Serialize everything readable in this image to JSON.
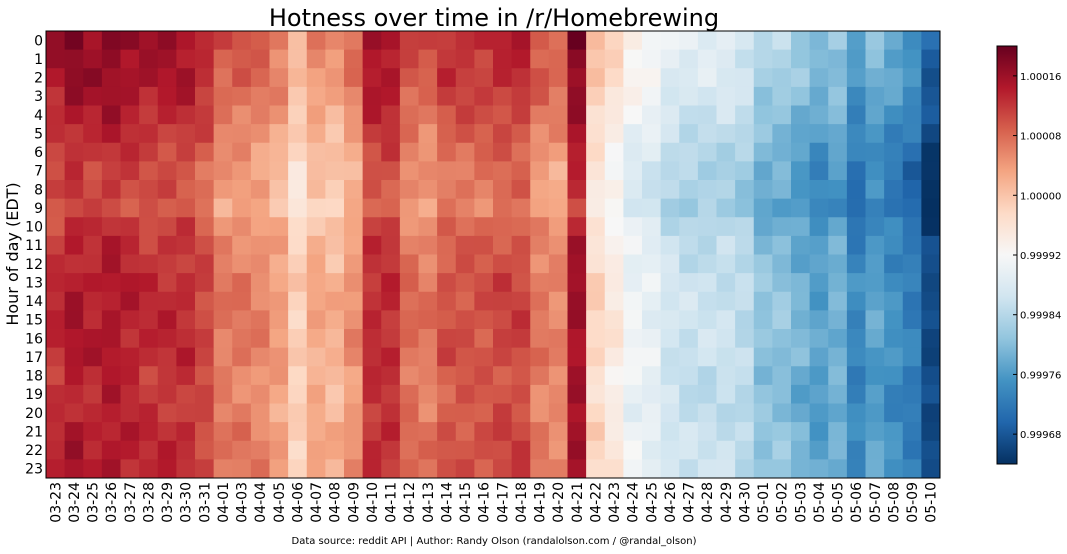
{
  "chart_data": {
    "type": "heatmap",
    "title": "Hotness over time in /r/Homebrewing",
    "ylabel": "Hour of day (EDT)",
    "xlabel": "",
    "footer": "Data source: reddit API | Author: Randy Olson (randalolson.com / @randal_olson)",
    "x": [
      "03-23",
      "03-24",
      "03-25",
      "03-26",
      "03-27",
      "03-28",
      "03-29",
      "03-30",
      "03-31",
      "04-01",
      "04-03",
      "04-04",
      "04-05",
      "04-06",
      "04-07",
      "04-08",
      "04-09",
      "04-10",
      "04-11",
      "04-12",
      "04-13",
      "04-14",
      "04-15",
      "04-16",
      "04-17",
      "04-18",
      "04-19",
      "04-20",
      "04-21",
      "04-22",
      "04-23",
      "04-24",
      "04-25",
      "04-26",
      "04-27",
      "04-28",
      "04-29",
      "04-30",
      "05-01",
      "05-02",
      "05-03",
      "05-04",
      "05-05",
      "05-06",
      "05-07",
      "05-08",
      "05-09",
      "05-10"
    ],
    "y": [
      "0",
      "1",
      "2",
      "3",
      "4",
      "5",
      "6",
      "7",
      "8",
      "9",
      "10",
      "11",
      "12",
      "13",
      "14",
      "15",
      "16",
      "17",
      "18",
      "19",
      "20",
      "21",
      "22",
      "23"
    ],
    "colorbar": {
      "colormap": "RdBu_r",
      "min": 0.99964,
      "max": 1.0002,
      "ticks": [
        1.00016,
        1.00008,
        1.0,
        0.99992,
        0.99984,
        0.99976,
        0.99968
      ],
      "tick_labels": [
        "1.00016",
        "1.00008",
        "1.00000",
        "0.99992",
        "0.99984",
        "0.99976",
        "0.99968"
      ]
    },
    "day_profile": [
      1.00012,
      1.00014,
      1.00013,
      1.00014,
      1.00013,
      1.00012,
      1.00012,
      1.00012,
      1.0001,
      1.00006,
      1.00006,
      1.00005,
      1.00003,
      0.99998,
      1.00002,
      1.00001,
      1.00004,
      1.00012,
      1.00012,
      1.00007,
      1.00006,
      1.00009,
      1.00009,
      1.00009,
      1.0001,
      1.0001,
      1.00006,
      1.00005,
      1.00015,
      0.99997,
      0.99994,
      0.9999,
      0.99989,
      0.99986,
      0.99985,
      0.99985,
      0.99985,
      0.99984,
      0.9998,
      0.9998,
      0.99978,
      0.99976,
      0.99978,
      0.99973,
      0.99976,
      0.99974,
      0.99972,
      0.99966
    ],
    "hour_profile": [
      4e-05,
      3e-05,
      3e-05,
      2e-05,
      1e-05,
      0.0,
      -1e-05,
      -2e-05,
      -2e-05,
      -3e-05,
      -1e-05,
      0.0,
      0.0,
      1e-05,
      1e-05,
      1e-05,
      1e-05,
      1e-05,
      0.0,
      0.0,
      0.0,
      1e-05,
      1e-05,
      1e-05
    ]
  }
}
